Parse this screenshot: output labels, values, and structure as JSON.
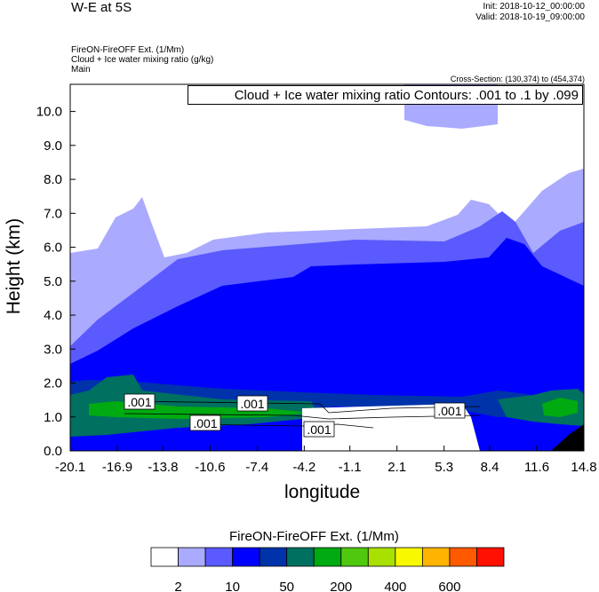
{
  "header": {
    "title": "W-E at 5S",
    "init": "Init: 2018-10-12_00:00:00",
    "valid": "Valid: 2018-10-19_09:00:00",
    "fields": [
      "FireON-FireOFF Ext.   (1/Mm)",
      "Cloud + Ice water mixing ratio   (g/kg)",
      "Main"
    ],
    "cross_section": "Cross-Section: (130,374) to (454,374)"
  },
  "chart_data": {
    "type": "heatmap",
    "title": "W-E at 5S",
    "contour_label": "Cloud + Ice water mixing ratio Contours: .001 to .1 by .099",
    "xlabel": "longitude",
    "ylabel": "Height (km)",
    "xlim": [
      -20.1,
      14.8
    ],
    "ylim": [
      0,
      10.8
    ],
    "xticks": [
      "-20.1",
      "-16.9",
      "-13.8",
      "-10.6",
      "-7.4",
      "-4.2",
      "-1.1",
      "2.1",
      "5.3",
      "8.4",
      "11.6",
      "14.8"
    ],
    "yticks": [
      "0.0",
      "1.0",
      "2.0",
      "3.0",
      "4.0",
      "5.0",
      "6.0",
      "7.0",
      "8.0",
      "9.0",
      "10.0"
    ],
    "contour_labels": [
      ".001",
      ".001",
      ".001",
      ".001",
      ".001"
    ],
    "colorbar": {
      "title": "FireON-FireOFF Ext.  (1/Mm)",
      "colors": [
        "#ffffff",
        "#aaaaff",
        "#5a5aff",
        "#0000ff",
        "#0033aa",
        "#007060",
        "#00aa11",
        "#50c810",
        "#a8e000",
        "#f8f800",
        "#ffb400",
        "#ff5a00",
        "#ff1000"
      ],
      "tick_labels": [
        "2",
        "10",
        "50",
        "200",
        "400",
        "600"
      ]
    }
  }
}
